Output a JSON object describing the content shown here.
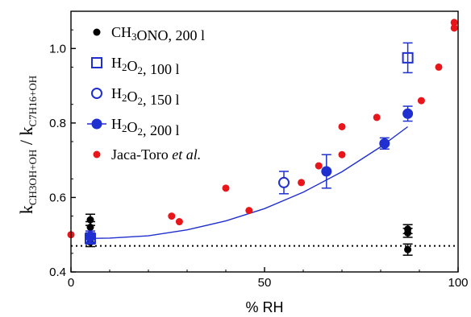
{
  "chart_data": {
    "type": "scatter",
    "xlabel": "% RH",
    "ylabel": {
      "base1": "k",
      "sub1": "CH3OH+OH",
      "sep": " / ",
      "base2": "k",
      "sub2": "C7H16+OH"
    },
    "xlim": [
      0,
      100
    ],
    "ylim": [
      0.4,
      1.1
    ],
    "xticks": [
      0,
      50,
      100
    ],
    "yticks": [
      0.4,
      0.6,
      0.8,
      1.0
    ],
    "xtick_labels": [
      "0",
      "50",
      "100"
    ],
    "ytick_labels": [
      "0.4",
      "0.6",
      "0.8",
      "1.0"
    ],
    "grid": false,
    "legend_position": "top-left",
    "series": [
      {
        "name": "CH3ONO, 200 l",
        "legend": {
          "p1": "CH",
          "s1": "3",
          "p2": "ONO, 200 l"
        },
        "color": "#000000",
        "marker": "filled-circle-small",
        "x": [
          5,
          5,
          5,
          87,
          87,
          87
        ],
        "y": [
          0.54,
          0.52,
          0.48,
          0.515,
          0.505,
          0.46
        ],
        "err": [
          0.015,
          0.015,
          0.012,
          0.012,
          0.012,
          0.015
        ]
      },
      {
        "name": "H2O2, 100 l",
        "legend": {
          "p1": "H",
          "s1": "2",
          "p2": "O",
          "s2": "2",
          "p3": ", 100 l"
        },
        "color": "#1f2fd0",
        "marker": "open-square",
        "x": [
          5,
          87
        ],
        "y": [
          0.49,
          0.975
        ],
        "err": [
          0.015,
          0.04
        ]
      },
      {
        "name": "H2O2, 150 l",
        "legend": {
          "p1": "H",
          "s1": "2",
          "p2": "O",
          "s2": "2",
          "p3": ", 150 l"
        },
        "color": "#1f2fd0",
        "marker": "open-circle",
        "x": [
          55
        ],
        "y": [
          0.64
        ],
        "err": [
          0.03
        ]
      },
      {
        "name": "H2O2, 200 l",
        "legend": {
          "p1": "H",
          "s1": "2",
          "p2": "O",
          "s2": "2",
          "p3": ", 200 l"
        },
        "color": "#1f2fd0",
        "marker": "filled-circle",
        "x": [
          5,
          66,
          81,
          87
        ],
        "y": [
          0.495,
          0.67,
          0.745,
          0.825
        ],
        "err": [
          0.015,
          0.045,
          0.015,
          0.02
        ]
      },
      {
        "name": "Jaca-Toro et al.",
        "legend": {
          "p1": "Jaca-Toro ",
          "i1": "et al."
        },
        "color": "#e8161b",
        "marker": "filled-circle-small",
        "x": [
          0,
          5,
          26,
          28,
          40,
          46,
          59.5,
          64,
          70,
          70,
          79,
          81,
          90.5,
          95,
          99,
          99
        ],
        "y": [
          0.5,
          0.5,
          0.55,
          0.535,
          0.625,
          0.565,
          0.64,
          0.685,
          0.79,
          0.715,
          0.815,
          0.745,
          0.86,
          0.95,
          1.055,
          1.07
        ]
      }
    ],
    "fit_curve": {
      "type": "line",
      "color": "#1f2fd0",
      "x": [
        5,
        10,
        20,
        30,
        40,
        50,
        60,
        70,
        80,
        87
      ],
      "y": [
        0.49,
        0.491,
        0.497,
        0.513,
        0.537,
        0.57,
        0.614,
        0.669,
        0.736,
        0.79
      ]
    },
    "reference_line": {
      "type": "dotted-hline",
      "y": 0.47,
      "color": "#000000"
    }
  }
}
